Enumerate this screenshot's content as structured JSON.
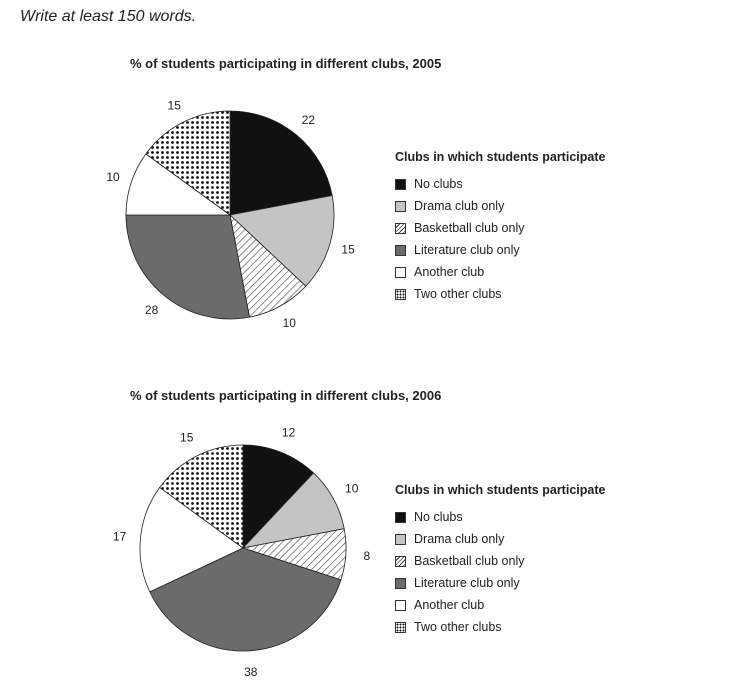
{
  "instruction": "Write at least 150 words.",
  "colors": {
    "no_clubs": "#111111",
    "drama": "#c4c4c4",
    "basketball": "hatch",
    "literature": "#6b6b6b",
    "another": "#ffffff",
    "two_other": "dots"
  },
  "chart_data": [
    {
      "type": "pie",
      "title": "% of students participating in different clubs, 2005",
      "legend_title": "Clubs in which students participate",
      "legend_position": "right",
      "categories": [
        "No clubs",
        "Drama club only",
        "Basketball club only",
        "Literature club only",
        "Another club",
        "Two other clubs"
      ],
      "values": [
        22,
        15,
        10,
        28,
        10,
        15
      ],
      "value_labels": [
        "22",
        "15",
        "10",
        "28",
        "10",
        "15"
      ]
    },
    {
      "type": "pie",
      "title": "% of students participating in different clubs, 2006",
      "legend_title": "Clubs in which students participate",
      "legend_position": "right",
      "categories": [
        "No clubs",
        "Drama club only",
        "Basketball club only",
        "Literature club only",
        "Another club",
        "Two other clubs"
      ],
      "values": [
        12,
        10,
        8,
        38,
        17,
        15
      ],
      "value_labels": [
        "12",
        "10",
        "8",
        "38",
        "17",
        "15"
      ]
    }
  ]
}
